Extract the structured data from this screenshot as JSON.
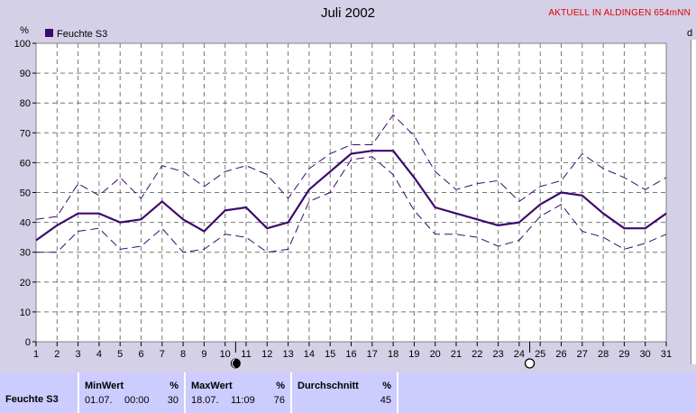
{
  "header": {
    "title": "Juli 2002",
    "badge": "AKTUELL IN ALDINGEN 654mNN",
    "cut_label": "d"
  },
  "chart_data": {
    "type": "line",
    "title": "Juli 2002",
    "ylabel": "%",
    "ylim": [
      0,
      100
    ],
    "yticks": [
      0,
      10,
      20,
      30,
      40,
      50,
      60,
      70,
      80,
      90,
      100
    ],
    "x": [
      1,
      2,
      3,
      4,
      5,
      6,
      7,
      8,
      9,
      10,
      11,
      12,
      13,
      14,
      15,
      16,
      17,
      18,
      19,
      20,
      21,
      22,
      23,
      24,
      25,
      26,
      27,
      28,
      29,
      30,
      31
    ],
    "grid": true,
    "legend": "top-left",
    "series": [
      {
        "name": "Feuchte S3",
        "role": "mean",
        "color": "#3c0a6e",
        "values": [
          34,
          39,
          43,
          43,
          40,
          41,
          47,
          41,
          37,
          44,
          45,
          38,
          40,
          51,
          57,
          63,
          64,
          64,
          55,
          45,
          43,
          41,
          39,
          40,
          46,
          50,
          49,
          43,
          38,
          38,
          43
        ]
      },
      {
        "role": "max",
        "dashed": true,
        "color": "#3c0a6e",
        "values": [
          41,
          42,
          53,
          49,
          55,
          48,
          59,
          57,
          52,
          57,
          59,
          56,
          48,
          58,
          63,
          66,
          66,
          76,
          69,
          57,
          51,
          53,
          54,
          47,
          52,
          54,
          63,
          58,
          55,
          51,
          55
        ]
      },
      {
        "role": "min",
        "dashed": true,
        "color": "#3c0a6e",
        "values": [
          30,
          30,
          37,
          38,
          31,
          32,
          38,
          30,
          31,
          36,
          35,
          30,
          31,
          47,
          50,
          61,
          62,
          56,
          44,
          36,
          36,
          35,
          32,
          34,
          42,
          46,
          37,
          35,
          31,
          33,
          36
        ]
      }
    ],
    "markers": [
      {
        "x": 10.5,
        "type": "new-moon"
      },
      {
        "x": 24.5,
        "type": "full-moon"
      }
    ]
  },
  "footer": {
    "row_label": "Feuchte S3",
    "min": {
      "label": "MinWert",
      "unit": "%",
      "date": "01.07.",
      "time": "00:00",
      "value": "30"
    },
    "max": {
      "label": "MaxWert",
      "unit": "%",
      "date": "18.07.",
      "time": "11:09",
      "value": "76"
    },
    "avg": {
      "label": "Durchschnitt",
      "unit": "%",
      "value": "45"
    }
  }
}
